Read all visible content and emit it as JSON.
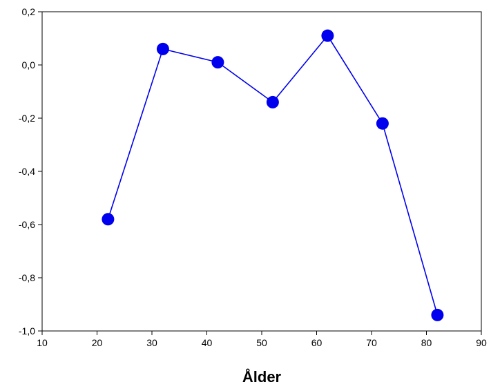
{
  "chart_data": {
    "type": "line",
    "title": "",
    "xlabel": "Ålder",
    "ylabel": "",
    "xlim": [
      10,
      90
    ],
    "ylim": [
      -1.0,
      0.2
    ],
    "grid": false,
    "legend": "none",
    "x_ticks": [
      10,
      20,
      30,
      40,
      50,
      60,
      70,
      80,
      90
    ],
    "x_tick_labels": [
      "10",
      "20",
      "30",
      "40",
      "50",
      "60",
      "70",
      "80",
      "90"
    ],
    "y_ticks": [
      -1.0,
      -0.8,
      -0.6,
      -0.4,
      -0.2,
      0.0,
      0.2
    ],
    "y_tick_labels": [
      "-1,0",
      "-0,8",
      "-0,6",
      "-0,4",
      "-0,2",
      "0,0",
      "0,2"
    ],
    "series": [
      {
        "color": "#0000ee",
        "marker": "circle",
        "x": [
          22,
          32,
          42,
          52,
          62,
          72,
          82
        ],
        "y": [
          -0.58,
          0.06,
          0.01,
          -0.14,
          0.11,
          -0.22,
          -0.94
        ]
      }
    ]
  }
}
